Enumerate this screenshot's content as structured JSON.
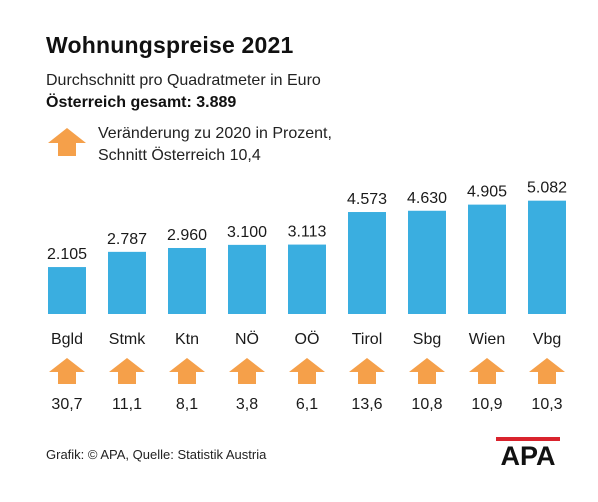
{
  "title": "Wohnungspreise 2021",
  "subtitle": "Durchschnitt pro Quadratmeter in Euro",
  "total": "Österreich gesamt: 3.889",
  "legend": {
    "line1": "Veränderung zu 2020 in Prozent,",
    "line2": "Schnitt Österreich 10,4",
    "icon": "arrow-up-icon"
  },
  "footer": "Grafik: © APA, Quelle: Statistik Austria",
  "logo_text": "APA",
  "colors": {
    "bar": "#3aaee0",
    "arrow": "#f5a04a",
    "logo_red": "#d9232d"
  },
  "chart_data": {
    "type": "bar",
    "categories": [
      "Bgld",
      "Stmk",
      "Ktn",
      "NÖ",
      "OÖ",
      "Tirol",
      "Sbg",
      "Wien",
      "Vbg"
    ],
    "values": [
      2105,
      2787,
      2960,
      3100,
      3113,
      4573,
      4630,
      4905,
      5082
    ],
    "value_labels": [
      "2.105",
      "2.787",
      "2.960",
      "3.100",
      "3.113",
      "4.573",
      "4.630",
      "4.905",
      "5.082"
    ],
    "change_pct": [
      30.7,
      11.1,
      8.1,
      3.8,
      6.1,
      13.6,
      10.8,
      10.9,
      10.3
    ],
    "change_labels": [
      "30,7",
      "11,1",
      "8,1",
      "3,8",
      "6,1",
      "13,6",
      "10,8",
      "10,9",
      "10,3"
    ],
    "title": "Wohnungspreise 2021",
    "xlabel": "",
    "ylabel": "",
    "grid": false,
    "legend_position": "top-left"
  }
}
